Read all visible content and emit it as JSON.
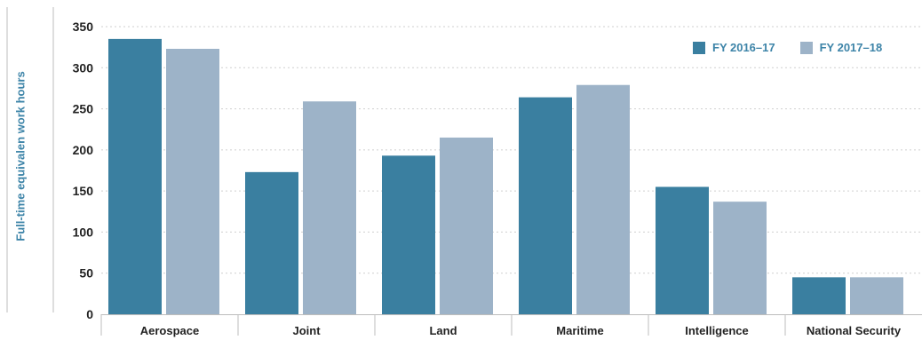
{
  "chart_data": {
    "type": "bar",
    "title": "",
    "xlabel": "",
    "ylabel": "Full-time equivalen work hours",
    "ylim": [
      0,
      350
    ],
    "yticks": [
      0,
      50,
      100,
      150,
      200,
      250,
      300,
      350
    ],
    "grid": true,
    "legend_position": "top-right",
    "categories": [
      "Aerospace",
      "Joint",
      "Land",
      "Maritime",
      "Intelligence",
      "National Security"
    ],
    "series": [
      {
        "name": "FY 2016–17",
        "color": "#3a7fa0",
        "values": [
          335,
          173,
          193,
          264,
          155,
          45
        ]
      },
      {
        "name": "FY 2017–18",
        "color": "#9db3c8",
        "values": [
          323,
          259,
          215,
          279,
          137,
          45
        ]
      }
    ]
  },
  "colors": {
    "accent_text": "#3d84a8",
    "axis_text": "#222222",
    "grid": "#cfcfcf",
    "axis_line": "#bdbdbd"
  }
}
